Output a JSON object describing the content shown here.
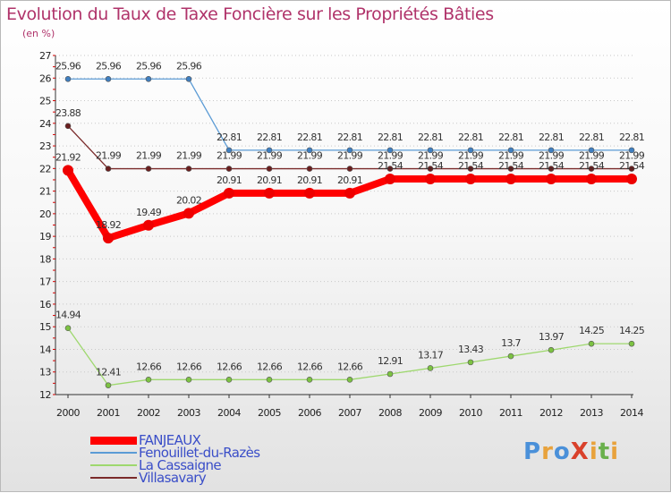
{
  "title": "Evolution du Taux de Taxe Foncière sur les Propriétés Bâties",
  "subtitle": "(en %)",
  "logo": {
    "text": "ProXiti",
    "colors": [
      "#4a90d9",
      "#e8a23c",
      "#4a90d9",
      "#d9412b",
      "#e8a23c",
      "#6ab04c",
      "#e8a23c"
    ]
  },
  "chart_data": {
    "type": "line",
    "x": [
      "2000",
      "2001",
      "2002",
      "2003",
      "2004",
      "2005",
      "2006",
      "2007",
      "2008",
      "2009",
      "2010",
      "2011",
      "2012",
      "2013",
      "2014"
    ],
    "ylim": [
      12,
      27
    ],
    "yticks": [
      "12",
      "13",
      "14",
      "15",
      "16",
      "17",
      "18",
      "19",
      "20",
      "21",
      "22",
      "23",
      "24",
      "25",
      "26",
      "27"
    ],
    "grid": "dotted horizontal",
    "legend_position": "bottom-left",
    "series": [
      {
        "name": "Fenouillet-du-Razès",
        "color": "#5b9bd5",
        "marker": "#3f7fc0",
        "width": 1.3,
        "values": [
          25.96,
          25.96,
          25.96,
          25.96,
          22.81,
          22.81,
          22.81,
          22.81,
          22.81,
          22.81,
          22.81,
          22.81,
          22.81,
          22.81,
          22.81
        ],
        "labels": [
          "25.96",
          "25.96",
          "25.96",
          "25.96",
          "22.81",
          "22.81",
          "22.81",
          "22.81",
          "22.81",
          "22.81",
          "22.81",
          "22.81",
          "22.81",
          "22.81",
          "22.81"
        ]
      },
      {
        "name": "La Cassaigne",
        "color": "#9ed86e",
        "marker": "#7cc242",
        "width": 1.3,
        "values": [
          14.94,
          12.41,
          12.66,
          12.66,
          12.66,
          12.66,
          12.66,
          12.66,
          12.91,
          13.17,
          13.43,
          13.7,
          13.97,
          14.25,
          14.25
        ],
        "labels": [
          "14.94",
          "12.41",
          "12.66",
          "12.66",
          "12.66",
          "12.66",
          "12.66",
          "12.66",
          "12.91",
          "13.17",
          "13.43",
          "13.7",
          "13.97",
          "14.25",
          "14.25"
        ]
      },
      {
        "name": "Villasavary",
        "color": "#7a2a2a",
        "marker": "#6a1f1f",
        "width": 1.3,
        "values": [
          23.88,
          21.99,
          21.99,
          21.99,
          21.99,
          21.99,
          21.99,
          21.99,
          21.99,
          21.99,
          21.99,
          21.99,
          21.99,
          21.99,
          21.99
        ],
        "labels": [
          "23.88",
          "21.99",
          "21.99",
          "21.99",
          "21.99",
          "21.99",
          "21.99",
          "21.99",
          "21.99",
          "21.99",
          "21.99",
          "21.99",
          "21.99",
          "21.99",
          "21.99"
        ]
      },
      {
        "name": "FANJEAUX",
        "color": "#ff0000",
        "marker": "#ee0000",
        "width": 8,
        "values": [
          21.92,
          18.92,
          19.49,
          20.02,
          20.91,
          20.91,
          20.91,
          20.91,
          21.54,
          21.54,
          21.54,
          21.54,
          21.54,
          21.54,
          21.54
        ],
        "labels": [
          "21.92",
          "18.92",
          "19.49",
          "20.02",
          "20.91",
          "20.91",
          "20.91",
          "20.91",
          "21.54",
          "21.54",
          "21.54",
          "21.54",
          "21.54",
          "21.54",
          "21.54"
        ]
      }
    ]
  },
  "legend": [
    {
      "name": "FANJEAUX",
      "color": "#ff0000",
      "thickness": 9,
      "text_color": "#3a4ec8"
    },
    {
      "name": "Fenouillet-du-Razès",
      "color": "#5b9bd5",
      "thickness": 2,
      "text_color": "#3a4ec8"
    },
    {
      "name": "La Cassaigne",
      "color": "#9ed86e",
      "thickness": 2,
      "text_color": "#3a4ec8"
    },
    {
      "name": "Villasavary",
      "color": "#7a2a2a",
      "thickness": 2,
      "text_color": "#3a4ec8"
    }
  ]
}
